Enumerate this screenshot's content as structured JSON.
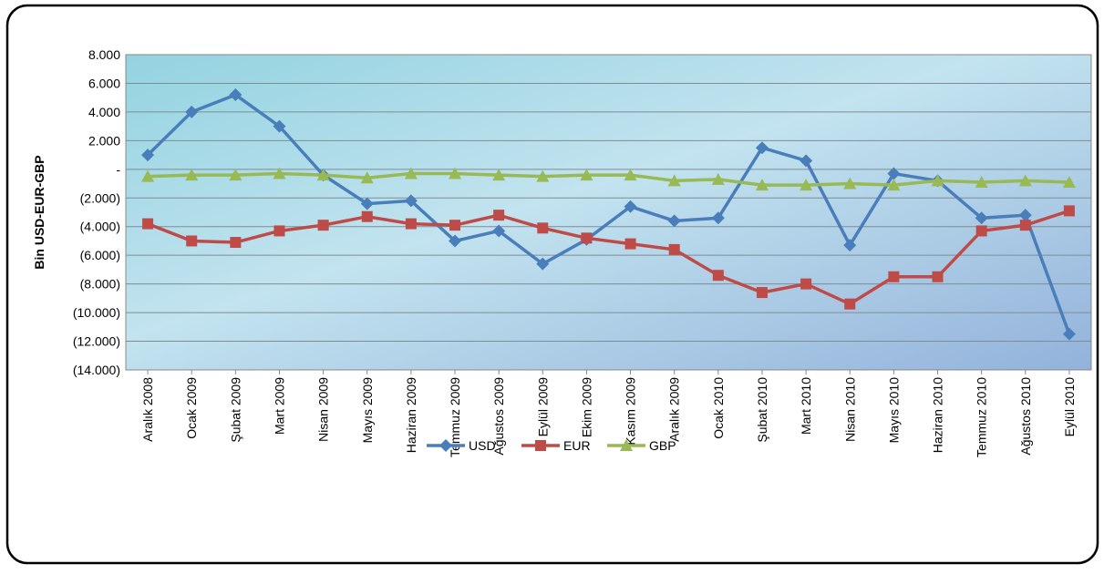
{
  "chart_data": {
    "type": "line",
    "y_label": "Bin USD-EUR-GBP",
    "categories": [
      "Aralık 2008",
      "Ocak 2009",
      "Şubat 2009",
      "Mart 2009",
      "Nisan 2009",
      "Mayıs 2009",
      "Haziran 2009",
      "Temmuz 2009",
      "Ağustos 2009",
      "Eylül 2009",
      "Ekim 2009",
      "Kasım 2009",
      "Aralık 2009",
      "Ocak 2010",
      "Şubat 2010",
      "Mart 2010",
      "Nisan 2010",
      "Mayıs 2010",
      "Haziran 2010",
      "Temmuz 2010",
      "Ağustos 2010",
      "Eylül 2010"
    ],
    "series": [
      {
        "name": "USD",
        "color": "#4a7ebb",
        "marker": "diamond",
        "values": [
          1000,
          4000,
          5200,
          3000,
          -400,
          -2400,
          -2200,
          -5000,
          -4300,
          -6600,
          -4900,
          -2600,
          -3600,
          -3400,
          1500,
          600,
          -5300,
          -300,
          -800,
          -3400,
          -3200,
          -11500
        ]
      },
      {
        "name": "EUR",
        "color": "#be4b48",
        "marker": "square",
        "values": [
          -3800,
          -5000,
          -5100,
          -4300,
          -3900,
          -3300,
          -3800,
          -3900,
          -3200,
          -4100,
          -4800,
          -5200,
          -5600,
          -7400,
          -8600,
          -8000,
          -9400,
          -7500,
          -7500,
          -4300,
          -3900,
          -2900
        ]
      },
      {
        "name": "GBP",
        "color": "#98b954",
        "marker": "triangle",
        "values": [
          -500,
          -400,
          -400,
          -300,
          -400,
          -600,
          -300,
          -300,
          -400,
          -500,
          -400,
          -400,
          -800,
          -700,
          -1100,
          -1100,
          -1000,
          -1100,
          -800,
          -900,
          -800,
          -900
        ]
      }
    ],
    "ylim": [
      -14000,
      8000
    ],
    "yticks": [
      {
        "value": 8000,
        "label": "8.000"
      },
      {
        "value": 6000,
        "label": "6.000"
      },
      {
        "value": 4000,
        "label": "4.000"
      },
      {
        "value": 2000,
        "label": "2.000"
      },
      {
        "value": 0,
        "label": "-"
      },
      {
        "value": -2000,
        "label": "(2.000)"
      },
      {
        "value": -4000,
        "label": "(4.000)"
      },
      {
        "value": -6000,
        "label": "(6.000)"
      },
      {
        "value": -8000,
        "label": "(8.000)"
      },
      {
        "value": -10000,
        "label": "(10.000)"
      },
      {
        "value": -12000,
        "label": "(12.000)"
      },
      {
        "value": -14000,
        "label": "(14.000)"
      }
    ],
    "grid": true,
    "legend": "bottom"
  }
}
